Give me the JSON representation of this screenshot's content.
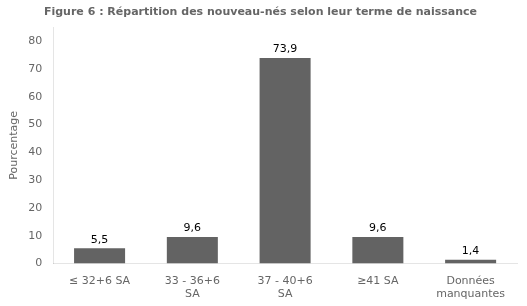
{
  "chart_data": {
    "type": "bar",
    "title": "Figure 6 : Répartition des nouveau-nés selon leur terme de naissance",
    "ylabel": "Pourcentage",
    "categories": [
      "≤ 32+6 SA",
      "33 - 36+6\nSA",
      "37 - 40+6\nSA",
      "≥41 SA",
      "Données\nmanquantes"
    ],
    "values": [
      5.5,
      9.6,
      73.9,
      9.6,
      1.4
    ],
    "value_labels": [
      "5,5",
      "9,6",
      "73,9",
      "9,6",
      "1,4"
    ],
    "data_labels": true,
    "color": "#636363",
    "ylim": [
      0,
      85
    ],
    "yticks": [
      0,
      10,
      20,
      30,
      40,
      50,
      60,
      70,
      80
    ],
    "grid": false
  }
}
